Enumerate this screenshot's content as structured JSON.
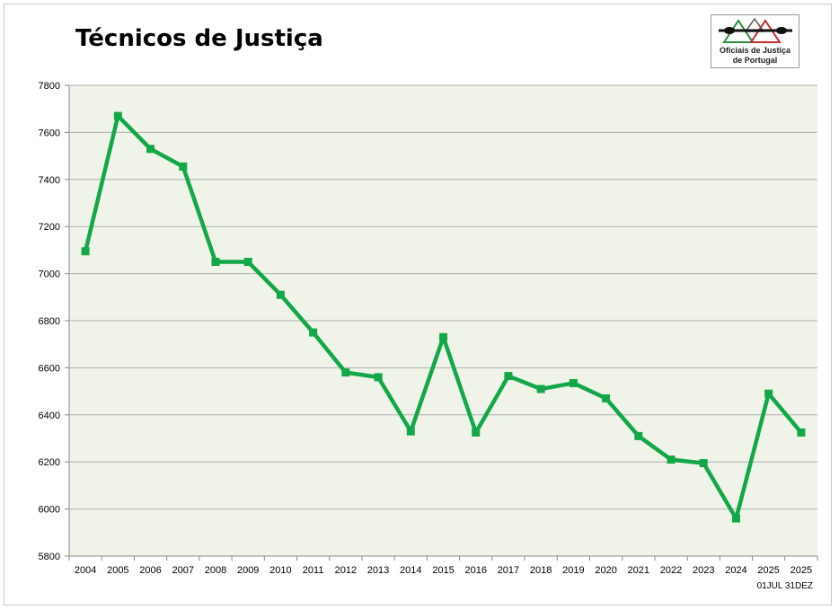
{
  "title": "Técnicos de Justiça",
  "logo": {
    "name": "officials-of-justice-logo",
    "line1": "Oficiais de Justiça",
    "line2": "de Portugal"
  },
  "colors": {
    "line": "#12a84a",
    "plot_bg": "#eff3e8",
    "grid": "#b0b0b0"
  },
  "chart_data": {
    "type": "line",
    "title": "Técnicos de Justiça",
    "xlabel": "",
    "ylabel": "",
    "categories": [
      "2004",
      "2005",
      "2006",
      "2007",
      "2008",
      "2009",
      "2010",
      "2011",
      "2012",
      "2013",
      "2014",
      "2015",
      "2016",
      "2017",
      "2018",
      "2019",
      "2020",
      "2021",
      "2022",
      "2023",
      "2024",
      "2025",
      "2025"
    ],
    "category_sublabels": [
      "",
      "",
      "",
      "",
      "",
      "",
      "",
      "",
      "",
      "",
      "",
      "",
      "",
      "",
      "",
      "",
      "",
      "",
      "",
      "",
      "",
      "01JUL",
      "31DEZ"
    ],
    "values": [
      7095,
      7670,
      7530,
      7455,
      7050,
      7050,
      6910,
      6750,
      6580,
      6560,
      6330,
      6730,
      6325,
      6565,
      6510,
      6535,
      6470,
      6310,
      6210,
      6195,
      5960,
      6490,
      6325
    ],
    "ylim": [
      5800,
      7800
    ],
    "yticks": [
      5800,
      6000,
      6200,
      6400,
      6600,
      6800,
      7000,
      7200,
      7400,
      7600,
      7800
    ],
    "grid": true,
    "legend": "none"
  }
}
